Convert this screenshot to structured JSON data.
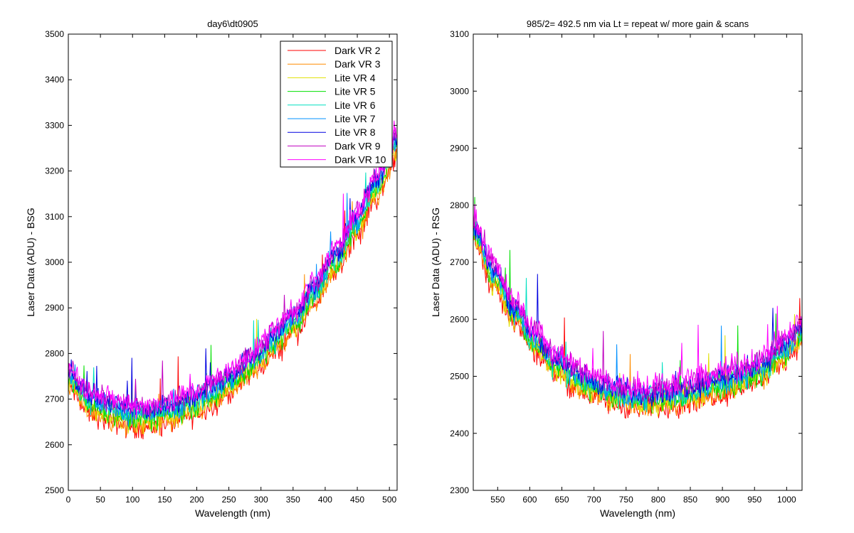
{
  "chart_data": [
    {
      "type": "line",
      "title": "day6\\dt0905",
      "xlabel": "Wavelength (nm)",
      "ylabel": "Laser Data (ADU) - BSG",
      "xlim": [
        0,
        512
      ],
      "ylim": [
        2500,
        3500
      ],
      "xticks": [
        0,
        50,
        100,
        150,
        200,
        250,
        300,
        350,
        400,
        450,
        500
      ],
      "yticks": [
        2500,
        2600,
        2700,
        2800,
        2900,
        3000,
        3100,
        3200,
        3300,
        3400,
        3500
      ],
      "legend": "top-right",
      "x": [
        0,
        32,
        64,
        96,
        128,
        160,
        192,
        224,
        256,
        288,
        320,
        352,
        384,
        416,
        448,
        480,
        512
      ],
      "series": [
        {
          "name": "Dark VR 2",
          "color": "#ff0000",
          "values": [
            2725,
            2670,
            2652,
            2640,
            2638,
            2648,
            2664,
            2688,
            2718,
            2756,
            2800,
            2848,
            2912,
            2978,
            3058,
            3142,
            3235
          ]
        },
        {
          "name": "Dark VR 3",
          "color": "#ff8c00",
          "values": [
            2730,
            2675,
            2657,
            2645,
            2643,
            2653,
            2669,
            2693,
            2723,
            2761,
            2805,
            2853,
            2917,
            2983,
            3063,
            3147,
            3240
          ]
        },
        {
          "name": "Lite VR 4",
          "color": "#e0e000",
          "values": [
            2738,
            2683,
            2665,
            2653,
            2651,
            2661,
            2677,
            2701,
            2731,
            2769,
            2813,
            2861,
            2925,
            2991,
            3071,
            3155,
            3248
          ]
        },
        {
          "name": "Lite VR 5",
          "color": "#00e000",
          "values": [
            2745,
            2690,
            2672,
            2660,
            2658,
            2668,
            2684,
            2708,
            2738,
            2776,
            2820,
            2868,
            2932,
            2998,
            3078,
            3162,
            3255
          ]
        },
        {
          "name": "Lite VR 6",
          "color": "#00e0c0",
          "values": [
            2752,
            2697,
            2679,
            2667,
            2665,
            2675,
            2691,
            2715,
            2745,
            2783,
            2827,
            2875,
            2939,
            3005,
            3085,
            3169,
            3262
          ]
        },
        {
          "name": "Lite VR 7",
          "color": "#0090ff",
          "values": [
            2758,
            2703,
            2685,
            2673,
            2671,
            2681,
            2697,
            2721,
            2751,
            2789,
            2833,
            2881,
            2945,
            3011,
            3091,
            3175,
            3268
          ]
        },
        {
          "name": "Lite VR 8",
          "color": "#0000e0",
          "values": [
            2765,
            2710,
            2692,
            2680,
            2678,
            2688,
            2704,
            2728,
            2758,
            2796,
            2840,
            2888,
            2952,
            3018,
            3098,
            3182,
            3275
          ]
        },
        {
          "name": "Dark VR 9",
          "color": "#c000c0",
          "values": [
            2770,
            2715,
            2697,
            2685,
            2683,
            2693,
            2709,
            2733,
            2763,
            2801,
            2845,
            2893,
            2957,
            3023,
            3103,
            3187,
            3280
          ]
        },
        {
          "name": "Dark VR 10",
          "color": "#ff00ff",
          "values": [
            2775,
            2720,
            2702,
            2690,
            2688,
            2698,
            2714,
            2738,
            2768,
            2806,
            2850,
            2898,
            2962,
            3028,
            3108,
            3192,
            3285
          ]
        }
      ]
    },
    {
      "type": "line",
      "title": "985/2= 492.5 nm via Lt = repeat w/ more gain & scans",
      "xlabel": "Wavelength (nm)",
      "ylabel": "Laser Data (ADU) - RSG",
      "xlim": [
        512,
        1024
      ],
      "ylim": [
        2300,
        3100
      ],
      "xticks": [
        550,
        600,
        650,
        700,
        750,
        800,
        850,
        900,
        950,
        1000
      ],
      "yticks": [
        2300,
        2400,
        2500,
        2600,
        2700,
        2800,
        2900,
        3000,
        3100
      ],
      "x": [
        512,
        544,
        576,
        608,
        640,
        672,
        704,
        736,
        768,
        800,
        832,
        864,
        896,
        928,
        960,
        992,
        1024
      ],
      "series": [
        {
          "name": "Dark VR 2",
          "color": "#ff0000",
          "values": [
            2740,
            2660,
            2595,
            2545,
            2505,
            2480,
            2462,
            2450,
            2444,
            2446,
            2452,
            2460,
            2470,
            2480,
            2495,
            2525,
            2560
          ]
        },
        {
          "name": "Dark VR 3",
          "color": "#ff8c00",
          "values": [
            2745,
            2665,
            2600,
            2550,
            2510,
            2485,
            2467,
            2455,
            2449,
            2451,
            2457,
            2465,
            2475,
            2485,
            2500,
            2530,
            2565
          ]
        },
        {
          "name": "Lite VR 4",
          "color": "#e0e000",
          "values": [
            2748,
            2668,
            2603,
            2553,
            2513,
            2488,
            2470,
            2458,
            2452,
            2454,
            2460,
            2468,
            2478,
            2488,
            2503,
            2533,
            2568
          ]
        },
        {
          "name": "Lite VR 5",
          "color": "#00e000",
          "values": [
            2752,
            2672,
            2607,
            2557,
            2517,
            2492,
            2474,
            2462,
            2456,
            2458,
            2464,
            2472,
            2482,
            2492,
            2507,
            2537,
            2572
          ]
        },
        {
          "name": "Lite VR 6",
          "color": "#00e0c0",
          "values": [
            2758,
            2678,
            2613,
            2563,
            2523,
            2498,
            2480,
            2468,
            2462,
            2464,
            2470,
            2478,
            2488,
            2498,
            2513,
            2543,
            2578
          ]
        },
        {
          "name": "Lite VR 7",
          "color": "#0090ff",
          "values": [
            2762,
            2682,
            2617,
            2567,
            2527,
            2502,
            2484,
            2472,
            2466,
            2468,
            2474,
            2482,
            2492,
            2502,
            2517,
            2547,
            2582
          ]
        },
        {
          "name": "Lite VR 8",
          "color": "#0000e0",
          "values": [
            2768,
            2688,
            2623,
            2573,
            2533,
            2508,
            2490,
            2478,
            2472,
            2474,
            2480,
            2488,
            2498,
            2508,
            2523,
            2553,
            2588
          ]
        },
        {
          "name": "Dark VR 9",
          "color": "#c000c0",
          "values": [
            2772,
            2692,
            2627,
            2577,
            2537,
            2512,
            2494,
            2482,
            2476,
            2478,
            2484,
            2492,
            2502,
            2512,
            2527,
            2557,
            2592
          ]
        },
        {
          "name": "Dark VR 10",
          "color": "#ff00ff",
          "values": [
            2778,
            2698,
            2633,
            2583,
            2543,
            2518,
            2500,
            2488,
            2482,
            2484,
            2490,
            2498,
            2508,
            2518,
            2533,
            2563,
            2598
          ]
        }
      ]
    }
  ]
}
